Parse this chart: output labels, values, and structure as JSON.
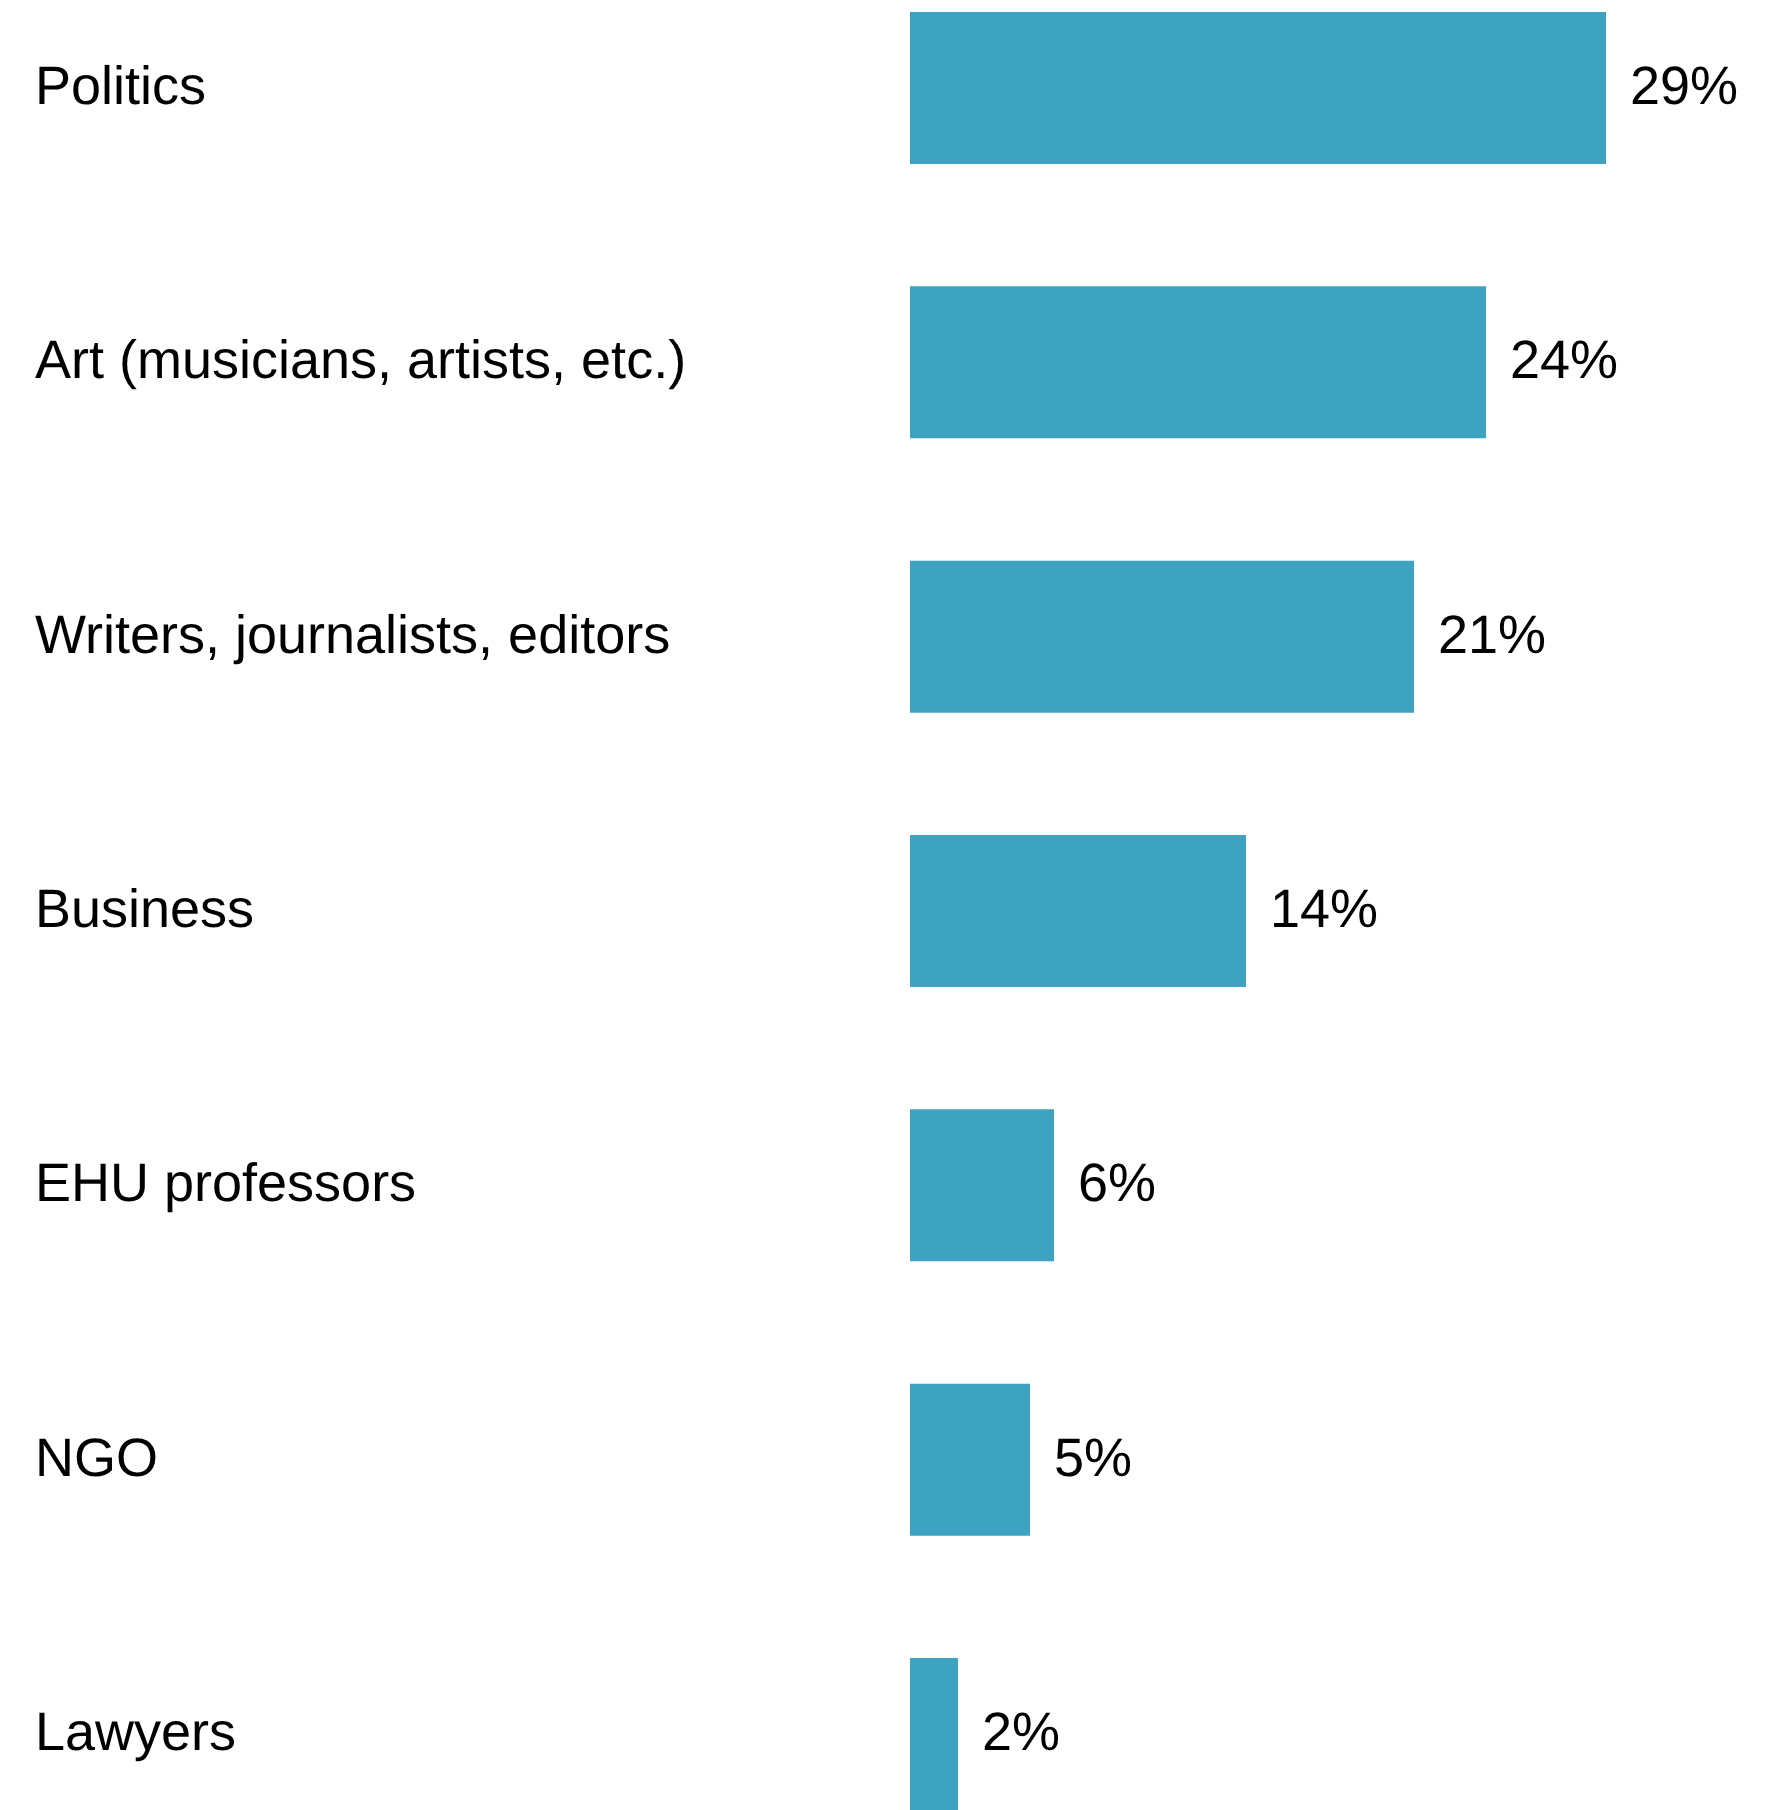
{
  "chart_data": {
    "type": "bar",
    "orientation": "horizontal",
    "categories": [
      "Politics",
      "Art (musicians, artists, etc.)",
      "Writers, journalists, editors",
      "Business",
      "EHU professors",
      "NGO",
      "Lawyers"
    ],
    "values": [
      29,
      24,
      21,
      14,
      6,
      5,
      2
    ],
    "value_labels": [
      "29%",
      "24%",
      "21%",
      "14%",
      "6%",
      "5%",
      "2%"
    ],
    "color": "#3ea3c0"
  }
}
